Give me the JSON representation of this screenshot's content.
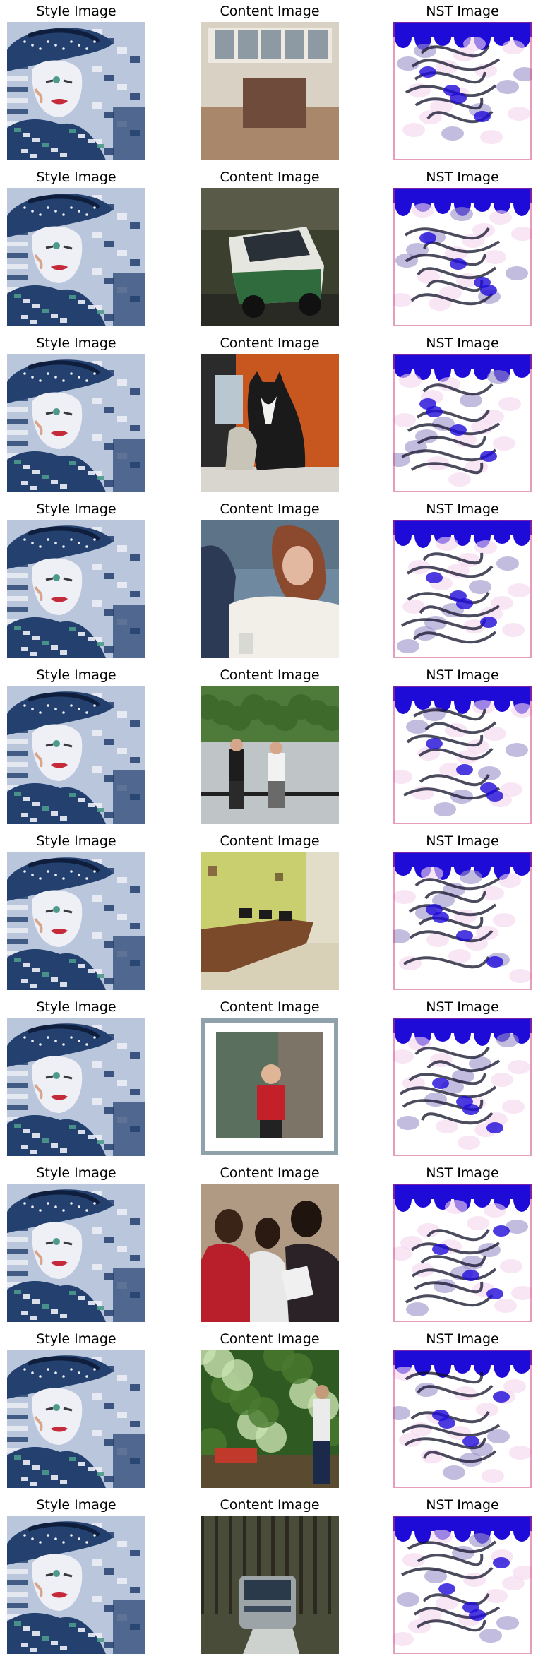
{
  "column_titles": [
    "Style Image",
    "Content Image",
    "NST Image"
  ],
  "rows": [
    {
      "style_title": "Style Image",
      "content_title": "Content Image",
      "nst_title": "NST Image",
      "content_scene": "room-interior",
      "content_colors": [
        "#d9d2c4",
        "#a9876b",
        "#6e4b3a"
      ]
    },
    {
      "style_title": "Style Image",
      "content_title": "Content Image",
      "nst_title": "NST Image",
      "content_scene": "rally-car",
      "content_colors": [
        "#3a3f2e",
        "#2f6b3c",
        "#e6e6e0"
      ]
    },
    {
      "style_title": "Style Image",
      "content_title": "Content Image",
      "nst_title": "NST Image",
      "content_scene": "black-white-cat",
      "content_colors": [
        "#c8561f",
        "#1a1a1a",
        "#d9d6cf"
      ]
    },
    {
      "style_title": "Style Image",
      "content_title": "Content Image",
      "nst_title": "NST Image",
      "content_scene": "woman-portrait",
      "content_colors": [
        "#6f8aa0",
        "#f2efe9",
        "#8b4a2e"
      ]
    },
    {
      "style_title": "Style Image",
      "content_title": "Content Image",
      "nst_title": "NST Image",
      "content_scene": "park-people",
      "content_colors": [
        "#4e7a3a",
        "#cfd8de",
        "#1d1d1d"
      ]
    },
    {
      "style_title": "Style Image",
      "content_title": "Content Image",
      "nst_title": "NST Image",
      "content_scene": "office-room",
      "content_colors": [
        "#c9cf6e",
        "#7a4a2a",
        "#d8d1b8"
      ]
    },
    {
      "style_title": "Style Image",
      "content_title": "Content Image",
      "nst_title": "NST Image",
      "content_scene": "framed-photo",
      "content_colors": [
        "#c8d2d6",
        "#5b6f5e",
        "#c4202a"
      ]
    },
    {
      "style_title": "Style Image",
      "content_title": "Content Image",
      "nst_title": "NST Image",
      "content_scene": "three-women",
      "content_colors": [
        "#b09a84",
        "#b81f2b",
        "#f0f0f0"
      ]
    },
    {
      "style_title": "Style Image",
      "content_title": "Content Image",
      "nst_title": "NST Image",
      "content_scene": "garden-man",
      "content_colors": [
        "#2f5a22",
        "#c9e2b2",
        "#1b2a4a"
      ]
    },
    {
      "style_title": "Style Image",
      "content_title": "Content Image",
      "nst_title": "NST Image",
      "content_scene": "bus-in-woods",
      "content_colors": [
        "#4a4c3a",
        "#9da4a8",
        "#cdd2cf"
      ]
    }
  ],
  "style_palette": [
    "#23406e",
    "#eef0f6",
    "#b9c6dc",
    "#d8a58a",
    "#c42a3a",
    "#4d9a8c"
  ],
  "nst_palette": [
    "#1f0bd8",
    "#ffffff",
    "#f4d6ee",
    "#9a8fc8",
    "#10102a",
    "#d23a7a"
  ]
}
